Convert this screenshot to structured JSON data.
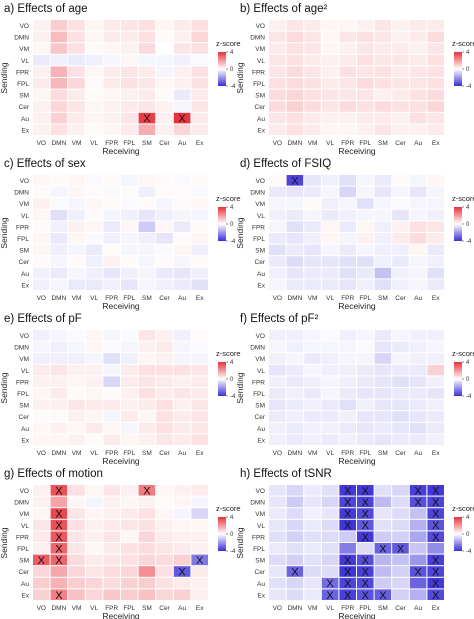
{
  "figure": {
    "row_labels": [
      "VO",
      "DMN",
      "VM",
      "VL",
      "FPR",
      "FPL",
      "SM",
      "Cer",
      "Au",
      "Ex"
    ],
    "col_labels": [
      "VO",
      "DMN",
      "VM",
      "VL",
      "FPR",
      "FPL",
      "SM",
      "Cer",
      "Au",
      "Ex"
    ],
    "x_axis_label": "Receiving",
    "y_axis_label": "Sending",
    "colorbar": {
      "title": "z-score",
      "ticks": [
        "4",
        "0",
        "-4"
      ],
      "range": [
        -4,
        4
      ]
    },
    "colors": {
      "high": "#e8323c",
      "mid": "#ffffff",
      "low": "#3a2fd6",
      "grid": "#ffffff"
    },
    "mark_symbol": "X"
  },
  "chart_data": [
    {
      "type": "heatmap",
      "title": "a) Effects of age",
      "z": [
        [
          0.3,
          1.0,
          0.6,
          0.2,
          0.4,
          0.5,
          0.6,
          0.2,
          0.4,
          0.6
        ],
        [
          0.3,
          1.3,
          0.6,
          0.2,
          0.4,
          0.4,
          0.6,
          0.1,
          0.3,
          0.8
        ],
        [
          0.2,
          1.1,
          0.6,
          0.1,
          0.2,
          0.3,
          0.7,
          0.0,
          0.5,
          0.6
        ],
        [
          -0.4,
          -0.3,
          -0.4,
          -0.3,
          -0.2,
          0.2,
          -0.2,
          -0.2,
          -0.3,
          -0.1
        ],
        [
          0.3,
          1.5,
          0.6,
          0.2,
          0.4,
          0.5,
          0.4,
          -0.2,
          0.3,
          0.6
        ],
        [
          0.4,
          1.4,
          0.8,
          0.1,
          0.4,
          0.6,
          0.5,
          0.2,
          0.3,
          0.6
        ],
        [
          0.2,
          0.7,
          0.4,
          0.1,
          0.2,
          0.3,
          0.4,
          0.1,
          -0.4,
          0.4
        ],
        [
          0.3,
          0.8,
          0.5,
          0.2,
          0.3,
          0.4,
          0.5,
          0.3,
          -0.2,
          0.5
        ],
        [
          0.3,
          0.9,
          0.4,
          0.2,
          0.3,
          0.5,
          3.8,
          0.3,
          4.2,
          0.4
        ],
        [
          0.3,
          0.6,
          0.3,
          0.1,
          0.2,
          0.4,
          1.6,
          0.3,
          0.8,
          0.4
        ]
      ],
      "marks": [
        [
          8,
          6
        ],
        [
          8,
          8
        ]
      ]
    },
    {
      "type": "heatmap",
      "title": "b) Effects of age²",
      "z": [
        [
          0.3,
          0.5,
          0.4,
          0.2,
          0.2,
          0.3,
          0.5,
          0.3,
          0.4,
          0.4
        ],
        [
          0.5,
          0.7,
          0.5,
          0.2,
          0.5,
          0.6,
          0.5,
          0.3,
          0.4,
          0.7
        ],
        [
          0.4,
          0.6,
          0.5,
          0.2,
          0.3,
          0.5,
          0.4,
          0.4,
          0.3,
          0.5
        ],
        [
          0.5,
          0.6,
          0.4,
          0.3,
          0.4,
          0.6,
          0.5,
          0.5,
          0.4,
          0.6
        ],
        [
          0.5,
          0.7,
          0.5,
          0.3,
          0.6,
          0.5,
          0.6,
          0.4,
          0.5,
          0.6
        ],
        [
          0.6,
          0.7,
          0.6,
          0.4,
          0.5,
          0.7,
          0.6,
          0.5,
          0.5,
          0.6
        ],
        [
          0.7,
          0.8,
          0.6,
          0.5,
          0.5,
          0.5,
          0.3,
          0.4,
          0.6,
          0.7
        ],
        [
          0.7,
          0.9,
          0.7,
          0.5,
          0.7,
          0.6,
          0.7,
          0.6,
          0.6,
          0.8
        ],
        [
          0.5,
          0.6,
          0.4,
          0.3,
          0.3,
          0.4,
          0.4,
          0.3,
          0.6,
          0.5
        ],
        [
          0.4,
          0.6,
          0.4,
          0.2,
          0.2,
          0.3,
          0.5,
          0.3,
          0.3,
          0.4
        ]
      ],
      "marks": []
    },
    {
      "type": "heatmap",
      "title": "c) Effects of sex",
      "z": [
        [
          0.2,
          0.1,
          0.2,
          -0.1,
          0.1,
          -0.2,
          0.2,
          0.1,
          -0.1,
          0.1
        ],
        [
          0.1,
          -0.2,
          0.2,
          0.1,
          -0.1,
          0.1,
          -0.3,
          0.1,
          0.1,
          -0.1
        ],
        [
          0.3,
          -0.1,
          -0.2,
          0.2,
          0.1,
          -0.1,
          0.1,
          -0.2,
          0.1,
          0.2
        ],
        [
          0.2,
          -0.6,
          -0.3,
          0.1,
          -0.2,
          -0.3,
          -0.5,
          -0.3,
          -0.2,
          -0.2
        ],
        [
          0.1,
          -0.3,
          0.3,
          0.2,
          -0.4,
          0.2,
          -1.0,
          0.2,
          -0.4,
          0.1
        ],
        [
          0.2,
          -0.4,
          0.2,
          -0.1,
          -0.3,
          -0.2,
          -0.3,
          -0.5,
          0.1,
          0.2
        ],
        [
          0.2,
          -0.3,
          -0.2,
          -0.4,
          0.1,
          -0.2,
          -0.2,
          -0.1,
          0.2,
          -0.3
        ],
        [
          0.1,
          -0.2,
          0.1,
          -0.3,
          0.3,
          0.1,
          -0.2,
          0.1,
          -0.2,
          0.1
        ],
        [
          -0.3,
          -0.4,
          -0.2,
          -0.3,
          -0.5,
          -0.3,
          -0.2,
          -0.4,
          -0.5,
          -0.3
        ],
        [
          -0.3,
          -0.2,
          -0.4,
          -0.4,
          -0.3,
          -0.5,
          -0.2,
          -0.3,
          -0.4,
          -0.6
        ]
      ],
      "marks": []
    },
    {
      "type": "heatmap",
      "title": "d) Effects of FSIQ",
      "z": [
        [
          0.1,
          -3.6,
          -0.5,
          -0.3,
          -0.6,
          -0.2,
          -0.4,
          0.1,
          -0.2,
          0.2
        ],
        [
          -0.4,
          -0.5,
          -0.4,
          -0.2,
          -0.8,
          -0.2,
          -0.5,
          -0.2,
          -0.5,
          -0.2
        ],
        [
          -0.2,
          -0.2,
          0.1,
          -0.3,
          -0.2,
          -0.6,
          -0.2,
          -0.1,
          -0.2,
          -0.2
        ],
        [
          -0.3,
          -0.4,
          -0.2,
          -0.4,
          -0.3,
          -0.2,
          -0.2,
          -0.5,
          -0.2,
          -0.3
        ],
        [
          -0.2,
          -0.6,
          -0.4,
          0.2,
          -0.4,
          0.2,
          -0.3,
          0.3,
          0.6,
          0.5
        ],
        [
          -0.4,
          -0.5,
          -0.3,
          0.2,
          -0.2,
          0.3,
          -0.3,
          0.4,
          0.7,
          0.4
        ],
        [
          -0.6,
          -0.4,
          -0.5,
          -0.2,
          -0.4,
          -0.2,
          -0.3,
          -0.3,
          0.2,
          -0.4
        ],
        [
          -0.4,
          -0.7,
          -0.5,
          -0.5,
          -0.6,
          -0.6,
          -0.3,
          -0.4,
          -0.2,
          -0.3
        ],
        [
          -0.3,
          -0.5,
          -0.4,
          -0.4,
          -0.6,
          -0.4,
          -1.2,
          -0.3,
          -0.2,
          -0.6
        ],
        [
          -0.2,
          -0.4,
          -0.4,
          -0.4,
          -0.5,
          -0.3,
          -0.6,
          -0.3,
          -0.2,
          -0.4
        ]
      ],
      "marks": [
        [
          0,
          1
        ]
      ]
    },
    {
      "type": "heatmap",
      "title": "e) Effects of pF",
      "z": [
        [
          -0.3,
          -0.2,
          -0.1,
          0.2,
          -0.2,
          -0.1,
          0.5,
          0.3,
          -0.3,
          0.1
        ],
        [
          -0.2,
          -0.3,
          -0.2,
          0.2,
          -0.1,
          -0.2,
          0.3,
          0.4,
          -0.2,
          -0.1
        ],
        [
          -0.3,
          -0.3,
          -0.3,
          -0.2,
          -0.6,
          -0.3,
          0.2,
          0.3,
          -0.2,
          -0.2
        ],
        [
          0.4,
          0.5,
          0.3,
          0.3,
          -0.2,
          0.4,
          0.6,
          0.6,
          0.6,
          0.5
        ],
        [
          0.3,
          0.3,
          0.2,
          0.3,
          -0.8,
          0.4,
          0.5,
          0.4,
          0.3,
          0.4
        ],
        [
          0.2,
          0.4,
          0.1,
          0.2,
          0.1,
          0.3,
          0.6,
          0.4,
          0.5,
          0.4
        ],
        [
          0.3,
          0.3,
          0.5,
          0.4,
          0.4,
          0.3,
          0.4,
          0.6,
          0.3,
          0.5
        ],
        [
          0.1,
          0.1,
          0.3,
          0.2,
          -0.2,
          0.4,
          0.2,
          0.6,
          0.4,
          0.5
        ],
        [
          0.2,
          0.3,
          0.2,
          0.4,
          0.2,
          -0.2,
          0.4,
          0.6,
          0.4,
          0.5
        ],
        [
          0.2,
          0.2,
          0.3,
          0.1,
          0.4,
          0.2,
          0.3,
          0.5,
          0.4,
          0.6
        ]
      ],
      "marks": []
    },
    {
      "type": "heatmap",
      "title": "f) Effects of pF²",
      "z": [
        [
          -0.3,
          -0.3,
          -0.2,
          -0.1,
          -0.3,
          -0.2,
          -0.4,
          -0.2,
          -0.3,
          -0.3
        ],
        [
          -0.2,
          -0.3,
          -0.2,
          -0.2,
          -0.2,
          -0.1,
          -0.5,
          -0.4,
          -0.3,
          -0.2
        ],
        [
          -0.3,
          -0.2,
          -0.4,
          -0.3,
          -0.2,
          -0.2,
          -0.8,
          -0.2,
          -0.3,
          -0.3
        ],
        [
          -0.5,
          -0.4,
          -0.2,
          -0.3,
          -0.3,
          -0.4,
          -0.5,
          -0.4,
          -0.4,
          0.9
        ],
        [
          -0.3,
          -0.4,
          -0.3,
          -0.2,
          -0.3,
          -0.4,
          -0.5,
          -0.6,
          -0.5,
          -0.3
        ],
        [
          -0.4,
          -0.3,
          -0.4,
          -0.2,
          -0.4,
          -0.5,
          -0.5,
          -0.4,
          -0.4,
          -0.5
        ],
        [
          -0.5,
          -0.4,
          -0.3,
          -0.4,
          -0.6,
          -0.3,
          -0.5,
          -0.5,
          -0.4,
          -0.3
        ],
        [
          -0.4,
          -0.3,
          -0.4,
          -0.4,
          -0.3,
          -0.5,
          -0.5,
          -0.6,
          -0.5,
          -0.4
        ],
        [
          -0.3,
          -0.4,
          -0.3,
          -0.3,
          -0.4,
          -0.5,
          -0.4,
          -0.5,
          -0.6,
          -0.4
        ],
        [
          -0.3,
          -0.4,
          -0.3,
          -0.4,
          -0.3,
          -0.4,
          -0.5,
          -0.4,
          -0.4,
          -0.3
        ]
      ],
      "marks": []
    },
    {
      "type": "heatmap",
      "title": "g) Effects of motion",
      "z": [
        [
          0.3,
          3.4,
          0.6,
          0.2,
          0.5,
          0.3,
          2.6,
          0.2,
          0.3,
          0.4
        ],
        [
          0.3,
          1.8,
          0.2,
          -0.2,
          0.3,
          0.2,
          0.3,
          0.1,
          0.2,
          -0.2
        ],
        [
          0.2,
          3.6,
          0.5,
          0.2,
          0.3,
          0.4,
          0.6,
          0.2,
          -0.2,
          -0.8
        ],
        [
          0.5,
          3.4,
          0.6,
          0.3,
          0.4,
          0.5,
          0.6,
          0.3,
          0.2,
          0.2
        ],
        [
          0.4,
          3.3,
          0.5,
          0.3,
          0.5,
          0.2,
          0.8,
          0.4,
          0.3,
          0.3
        ],
        [
          0.3,
          3.0,
          0.5,
          0.2,
          0.4,
          0.6,
          0.7,
          0.5,
          0.4,
          0.3
        ],
        [
          3.2,
          3.0,
          0.7,
          0.4,
          0.5,
          0.6,
          0.8,
          0.7,
          0.9,
          -2.6
        ],
        [
          0.8,
          1.7,
          0.8,
          0.5,
          0.7,
          0.8,
          2.2,
          0.6,
          -3.2,
          0.4
        ],
        [
          1.0,
          1.5,
          1.0,
          0.8,
          0.7,
          0.9,
          1.0,
          0.6,
          0.4,
          0.3
        ],
        [
          0.9,
          2.5,
          1.2,
          0.8,
          1.1,
          1.0,
          1.2,
          0.8,
          0.9,
          0.3
        ]
      ],
      "marks": [
        [
          0,
          1
        ],
        [
          0,
          6
        ],
        [
          2,
          1
        ],
        [
          3,
          1
        ],
        [
          4,
          1
        ],
        [
          5,
          1
        ],
        [
          6,
          0
        ],
        [
          6,
          1
        ],
        [
          6,
          9
        ],
        [
          7,
          8
        ],
        [
          9,
          1
        ]
      ]
    },
    {
      "type": "heatmap",
      "title": "h) Effects of tSNR",
      "z": [
        [
          -0.5,
          -0.8,
          -0.4,
          -0.6,
          -3.8,
          -3.8,
          -0.6,
          -0.8,
          -3.7,
          -3.8
        ],
        [
          -0.5,
          -1.0,
          -0.5,
          -0.8,
          -3.6,
          -3.6,
          -1.3,
          -0.7,
          -3.4,
          -3.6
        ],
        [
          -0.4,
          -0.7,
          -0.3,
          -0.5,
          -3.8,
          -3.5,
          -0.5,
          -0.7,
          -1.2,
          -3.6
        ],
        [
          -0.5,
          -0.8,
          -0.4,
          -0.7,
          -3.9,
          -3.2,
          -0.6,
          -0.7,
          -1.5,
          -3.3
        ],
        [
          -0.6,
          -0.9,
          -0.6,
          -0.7,
          -1.0,
          -3.8,
          -1.0,
          -0.9,
          -1.7,
          -3.5
        ],
        [
          -0.4,
          -0.6,
          -0.4,
          -0.6,
          -2.5,
          -0.7,
          -3.0,
          -3.2,
          -1.1,
          -2.2
        ],
        [
          -0.7,
          -0.9,
          -0.6,
          -0.8,
          -3.8,
          -3.4,
          -1.4,
          -1.2,
          -2.0,
          -3.7
        ],
        [
          -0.5,
          -3.0,
          -0.7,
          -0.7,
          -3.9,
          -3.7,
          -1.3,
          -0.9,
          -3.3,
          -3.6
        ],
        [
          -0.6,
          -0.8,
          -0.5,
          -2.8,
          -3.6,
          -3.5,
          -1.0,
          -0.8,
          -3.0,
          -3.8
        ],
        [
          -0.5,
          -0.7,
          -0.4,
          -3.0,
          -3.7,
          -3.3,
          -3.1,
          -0.9,
          -1.5,
          -3.5
        ]
      ],
      "marks": [
        [
          0,
          4
        ],
        [
          0,
          5
        ],
        [
          0,
          8
        ],
        [
          0,
          9
        ],
        [
          1,
          4
        ],
        [
          1,
          5
        ],
        [
          1,
          8
        ],
        [
          1,
          9
        ],
        [
          2,
          4
        ],
        [
          2,
          5
        ],
        [
          2,
          9
        ],
        [
          3,
          4
        ],
        [
          3,
          5
        ],
        [
          3,
          9
        ],
        [
          4,
          5
        ],
        [
          4,
          9
        ],
        [
          5,
          6
        ],
        [
          5,
          7
        ],
        [
          6,
          4
        ],
        [
          6,
          5
        ],
        [
          6,
          9
        ],
        [
          7,
          1
        ],
        [
          7,
          4
        ],
        [
          7,
          5
        ],
        [
          7,
          8
        ],
        [
          7,
          9
        ],
        [
          8,
          3
        ],
        [
          8,
          4
        ],
        [
          8,
          5
        ],
        [
          8,
          9
        ],
        [
          9,
          3
        ],
        [
          9,
          4
        ],
        [
          9,
          5
        ],
        [
          9,
          6
        ],
        [
          9,
          9
        ]
      ]
    }
  ]
}
